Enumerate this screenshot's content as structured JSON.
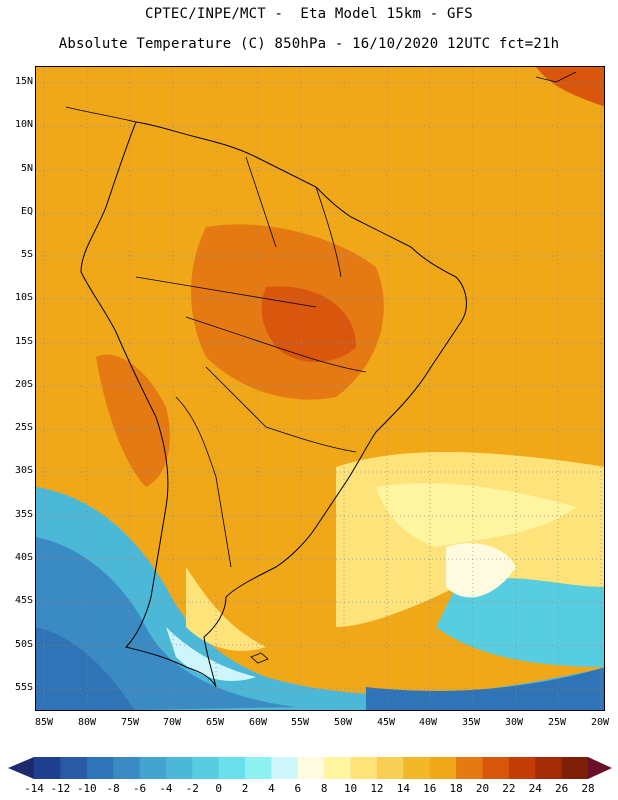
{
  "title": {
    "line1": "CPTEC/INPE/MCT -  Eta Model 15km - GFS",
    "line2": "Absolute Temperature (C) 850hPa - 16/10/2020 12UTC fct=21h"
  },
  "map": {
    "lat_labels": [
      "15N",
      "10N",
      "5N",
      "EQ",
      "5S",
      "10S",
      "15S",
      "20S",
      "25S",
      "30S",
      "35S",
      "40S",
      "45S",
      "50S",
      "55S"
    ],
    "lon_labels": [
      "85W",
      "80W",
      "75W",
      "70W",
      "65W",
      "60W",
      "55W",
      "50W",
      "45W",
      "40W",
      "35W",
      "30W",
      "25W",
      "20W"
    ],
    "grid": "dotted"
  },
  "colorbar": {
    "labels": [
      "-14",
      "-12",
      "-10",
      "-8",
      "-6",
      "-4",
      "-2",
      "0",
      "2",
      "4",
      "6",
      "8",
      "10",
      "12",
      "14",
      "16",
      "18",
      "20",
      "22",
      "24",
      "26",
      "28"
    ],
    "colors": [
      "#1f3f8f",
      "#2a5aa6",
      "#2f74b6",
      "#3a8bc4",
      "#45a3cf",
      "#4cb8d8",
      "#57cde2",
      "#6ae0ea",
      "#8ef0f0",
      "#cdf5fa",
      "#fffbe0",
      "#fff5a0",
      "#fde37a",
      "#f8cf55",
      "#f2b82a",
      "#f0a818",
      "#e57a12",
      "#d9560c",
      "#c23d08",
      "#a32c06",
      "#7d1f04"
    ]
  }
}
